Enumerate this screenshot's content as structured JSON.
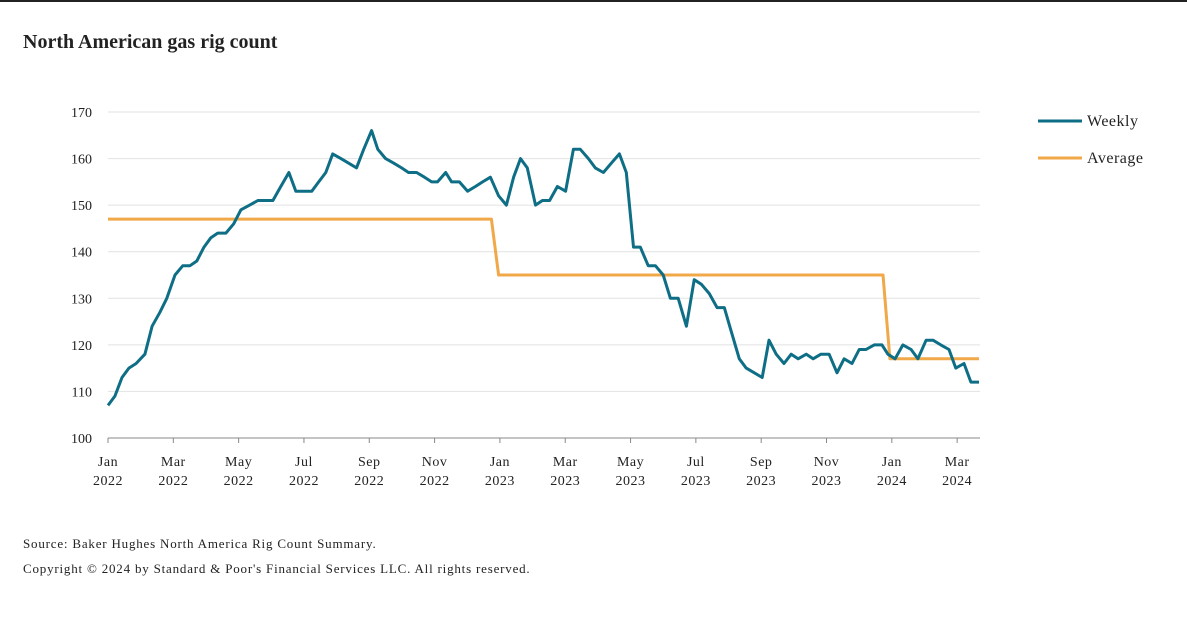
{
  "chart_data": {
    "type": "line",
    "title": "North American gas rig count",
    "xlim": [
      0,
      26.7
    ],
    "xticks": [
      {
        "value": 0,
        "label": "Jan 2022"
      },
      {
        "value": 2,
        "label": "Mar 2022"
      },
      {
        "value": 4,
        "label": "May 2022"
      },
      {
        "value": 6,
        "label": "Jul 2022"
      },
      {
        "value": 8,
        "label": "Sep 2022"
      },
      {
        "value": 10,
        "label": "Nov 2022"
      },
      {
        "value": 12,
        "label": "Jan 2023"
      },
      {
        "value": 14,
        "label": "Mar 2023"
      },
      {
        "value": 16,
        "label": "May 2023"
      },
      {
        "value": 18,
        "label": "Jul 2023"
      },
      {
        "value": 20,
        "label": "Sep 2023"
      },
      {
        "value": 22,
        "label": "Nov 2023"
      },
      {
        "value": 24,
        "label": "Jan 2024"
      },
      {
        "value": 26,
        "label": "Mar 2024"
      }
    ],
    "ylim": [
      100,
      170
    ],
    "yticks": [
      100,
      110,
      120,
      130,
      140,
      150,
      160,
      170
    ],
    "grid": true,
    "legend": "right",
    "series": [
      {
        "name": "Weekly",
        "color": "#0e6e86",
        "x": [
          0,
          0.21,
          0.43,
          0.64,
          0.86,
          1.13,
          1.35,
          1.59,
          1.8,
          2.05,
          2.29,
          2.51,
          2.72,
          2.94,
          3.15,
          3.36,
          3.61,
          3.85,
          4.07,
          4.34,
          4.59,
          4.83,
          5.05,
          5.29,
          5.54,
          5.75,
          5.99,
          6.24,
          6.45,
          6.67,
          6.88,
          7.13,
          7.37,
          7.61,
          7.83,
          8.07,
          8.26,
          8.5,
          8.75,
          8.99,
          9.2,
          9.45,
          9.69,
          9.91,
          10.09,
          10.34,
          10.52,
          10.76,
          11.01,
          11.25,
          11.47,
          11.71,
          11.96,
          12.2,
          12.42,
          12.63,
          12.84,
          13.09,
          13.3,
          13.52,
          13.76,
          14.01,
          14.25,
          14.46,
          14.71,
          14.92,
          15.17,
          15.41,
          15.66,
          15.87,
          16.09,
          16.3,
          16.54,
          16.76,
          17.0,
          17.22,
          17.46,
          17.71,
          17.95,
          18.17,
          18.41,
          18.65,
          18.87,
          19.08,
          19.33,
          19.54,
          19.79,
          20.03,
          20.24,
          20.46,
          20.7,
          20.92,
          21.13,
          21.38,
          21.59,
          21.83,
          22.08,
          22.32,
          22.54,
          22.78,
          23.0,
          23.21,
          23.46,
          23.7,
          23.88,
          24.1,
          24.34,
          24.59,
          24.8,
          25.05,
          25.26,
          25.5,
          25.75,
          25.96,
          26.21,
          26.42,
          26.67
        ],
        "values": [
          107,
          109,
          113,
          115,
          116,
          118,
          124,
          127,
          130,
          135,
          137,
          137,
          138,
          141,
          143,
          144,
          144,
          146,
          149,
          150,
          151,
          151,
          151,
          154,
          157,
          153,
          153,
          153,
          155,
          157,
          161,
          160,
          159,
          158,
          162,
          166,
          162,
          160,
          159,
          158,
          157,
          157,
          156,
          155,
          155,
          157,
          155,
          155,
          153,
          154,
          155,
          156,
          152,
          150,
          156,
          160,
          158,
          150,
          151,
          151,
          154,
          153,
          162,
          162,
          160,
          158,
          157,
          159,
          161,
          157,
          141,
          141,
          137,
          137,
          135,
          130,
          130,
          124,
          134,
          133,
          131,
          128,
          128,
          123,
          117,
          115,
          114,
          113,
          121,
          118,
          116,
          118,
          117,
          118,
          117,
          118,
          118,
          114,
          117,
          116,
          119,
          119,
          120,
          120,
          118,
          117,
          120,
          119,
          117,
          121,
          121,
          120,
          119,
          115,
          116,
          112,
          112
        ]
      },
      {
        "name": "Average",
        "color": "#f0a848",
        "x": [
          0,
          11.74,
          11.96,
          23.73,
          23.94,
          26.67
        ],
        "values": [
          147,
          147,
          135,
          135,
          117,
          117
        ]
      }
    ],
    "notes": [
      "Source: Baker Hughes North America Rig Count Summary.",
      "Copyright © 2024 by Standard & Poor's Financial Services LLC. All rights reserved."
    ]
  }
}
